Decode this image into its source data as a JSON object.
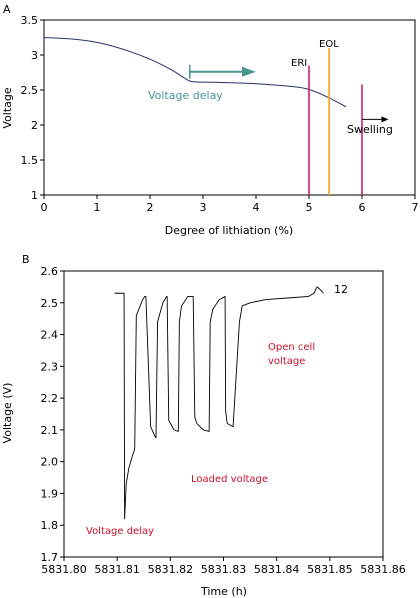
{
  "colors": {
    "line": "#2b2f6e",
    "teal": "#4a958d",
    "magenta": "#cc1f7a",
    "orange": "#f2a31b",
    "red": "#c8102e",
    "axis": "#000000"
  },
  "chart_data": [
    {
      "panel": "A",
      "type": "line",
      "xlabel": "Degree of lithiation (%)",
      "ylabel": "Voltage",
      "xlim": [
        0,
        7
      ],
      "ylim": [
        1,
        3.5
      ],
      "xticks": [
        0,
        1,
        2,
        3,
        4,
        5,
        6,
        7
      ],
      "yticks": [
        1,
        1.5,
        2,
        2.5,
        3,
        3.5
      ],
      "xtick_labels": [
        "0",
        "1",
        "2",
        "3",
        "4",
        "5",
        "6",
        "7"
      ],
      "ytick_labels": [
        "1",
        "1.5",
        "2",
        "2.5",
        "3",
        "3.5"
      ],
      "grid": false,
      "series": [
        {
          "x": [
            0,
            0.5,
            1.0,
            1.5,
            2.0,
            2.4,
            2.65,
            2.8,
            3.2,
            4.0,
            4.8,
            5.1,
            5.4,
            5.7
          ],
          "y": [
            3.25,
            3.23,
            3.18,
            3.08,
            2.94,
            2.79,
            2.67,
            2.62,
            2.61,
            2.59,
            2.54,
            2.48,
            2.38,
            2.26
          ]
        }
      ],
      "vlines": [
        {
          "x": 5.0,
          "y0": 1,
          "y1": 2.85,
          "color": "magenta",
          "label": "ERI"
        },
        {
          "x": 5.38,
          "y0": 1,
          "y1": 3.1,
          "color": "orange",
          "label": "EOL"
        },
        {
          "x": 6.0,
          "y0": 1,
          "y1": 2.58,
          "color": "magenta",
          "label": ""
        }
      ],
      "annotations": {
        "voltage_delay": "Voltage delay",
        "swelling": "Swelling"
      },
      "arrows": [
        {
          "from": [
            2.75,
            2.76
          ],
          "to": [
            4.0,
            2.76
          ],
          "color": "teal"
        },
        {
          "from": [
            6.0,
            2.08
          ],
          "to": [
            6.5,
            2.08
          ],
          "color": "axis"
        }
      ]
    },
    {
      "panel": "B",
      "type": "line",
      "xlabel": "Time (h)",
      "ylabel": "Voltage (V)",
      "xlim": [
        5831.8,
        5831.86
      ],
      "ylim": [
        1.7,
        2.6
      ],
      "xticks": [
        5831.8,
        5831.81,
        5831.82,
        5831.83,
        5831.84,
        5831.85,
        5831.86
      ],
      "yticks": [
        1.7,
        1.8,
        1.9,
        2.0,
        2.1,
        2.2,
        2.3,
        2.4,
        2.5,
        2.6
      ],
      "xtick_labels": [
        "5831.80",
        "5831.81",
        "5831.82",
        "5831.83",
        "5831.84",
        "5831.85",
        "5831.86"
      ],
      "ytick_labels": [
        "1.7",
        "1.8",
        "1.9",
        "2.0",
        "2.1",
        "2.2",
        "2.3",
        "2.4",
        "2.5",
        "2.6"
      ],
      "grid": false,
      "series": [
        {
          "x": [
            5831.8095,
            5831.8113,
            5831.8114,
            5831.8117,
            5831.8122,
            5831.8129,
            5831.8133,
            5831.8136,
            5831.8148,
            5831.8152,
            5831.8154,
            5831.8163,
            5831.8171,
            5831.8173,
            5831.8176,
            5831.8186,
            5831.8193,
            5831.8194,
            5831.8197,
            5831.8207,
            5831.8215,
            5831.8217,
            5831.8221,
            5831.8233,
            5831.8243,
            5831.8246,
            5831.825,
            5831.8262,
            5831.8273,
            5831.8275,
            5831.828,
            5831.8292,
            5831.8303,
            5831.8304,
            5831.8307,
            5831.8318,
            5831.833,
            5831.8333,
            5831.8335,
            5831.835,
            5831.838,
            5831.842,
            5831.846,
            5831.847,
            5831.8476,
            5831.848,
            5831.8488
          ],
          "y": [
            2.53,
            2.53,
            1.82,
            1.93,
            1.98,
            2.02,
            2.04,
            2.46,
            2.51,
            2.52,
            2.52,
            2.11,
            2.08,
            2.075,
            2.44,
            2.5,
            2.52,
            2.52,
            2.13,
            2.1,
            2.095,
            2.44,
            2.49,
            2.52,
            2.52,
            2.14,
            2.12,
            2.1,
            2.095,
            2.44,
            2.48,
            2.51,
            2.52,
            2.16,
            2.12,
            2.11,
            2.44,
            2.47,
            2.49,
            2.5,
            2.51,
            2.515,
            2.52,
            2.53,
            2.55,
            2.545,
            2.53
          ]
        }
      ],
      "annotations": {
        "point_label": "12",
        "open_cell_voltage": "Open cell\nvoltage",
        "loaded_voltage": "Loaded voltage",
        "voltage_delay": "Voltage delay"
      }
    }
  ],
  "panels": {
    "a": "A",
    "b": "B"
  }
}
